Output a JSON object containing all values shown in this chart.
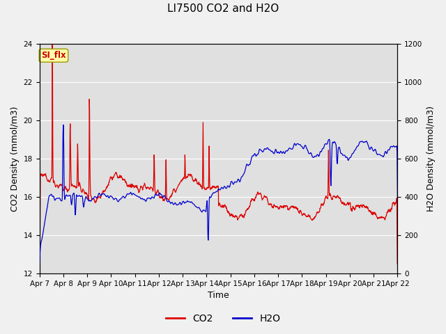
{
  "title": "LI7500 CO2 and H2O",
  "xlabel": "Time",
  "ylabel_left": "CO2 Density (mmol/m3)",
  "ylabel_right": "H2O Density (mmol/m3)",
  "xlim_days": [
    0,
    15
  ],
  "ylim_left": [
    12,
    24
  ],
  "ylim_right": [
    0,
    1200
  ],
  "yticks_left": [
    12,
    14,
    16,
    18,
    20,
    22,
    24
  ],
  "yticks_right": [
    0,
    200,
    400,
    600,
    800,
    1000,
    1200
  ],
  "xtick_labels": [
    "Apr 7",
    "Apr 8",
    "Apr 9",
    "Apr 10",
    "Apr 11",
    "Apr 12",
    "Apr 13",
    "Apr 14",
    "Apr 15",
    "Apr 16",
    "Apr 17",
    "Apr 18",
    "Apr 19",
    "Apr 20",
    "Apr 21",
    "Apr 22"
  ],
  "co2_color": "#dd0000",
  "h2o_color": "#0000cc",
  "bg_outer": "#f0f0f0",
  "bg_inner": "#e0e0e0",
  "annotation_text": "SI_flx",
  "annotation_bg": "#ffffaa",
  "annotation_border": "#999900",
  "annotation_text_color": "#cc0000",
  "legend_co2": "CO2",
  "legend_h2o": "H2O",
  "title_fontsize": 11,
  "axis_fontsize": 9,
  "tick_fontsize": 7.5,
  "legend_fontsize": 10,
  "linewidth": 0.9,
  "seed": 12345
}
